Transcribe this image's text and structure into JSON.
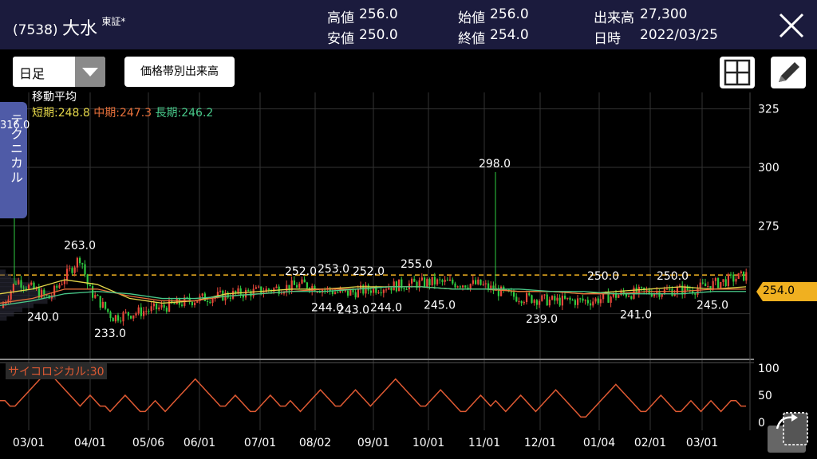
{
  "header": {
    "code": "(7538)",
    "name": "大水",
    "market": "東証*",
    "high_label": "高値",
    "high_value": "256.0",
    "low_label": "安値",
    "low_value": "250.0",
    "open_label": "始値",
    "open_value": "256.0",
    "close_label": "終値",
    "close_value": "254.0",
    "volume_label": "出来高",
    "volume_value": "27,300",
    "date_label": "日時",
    "date_value": "2022/03/25"
  },
  "toolbar": {
    "period_selected": "日足",
    "volume_button": "価格帯別出来高",
    "layout_icon": "grid-icon",
    "draw_icon": "pencil-icon",
    "close_icon": "close-icon"
  },
  "side_tab": {
    "label": "テクニカル",
    "value": "316.0"
  },
  "ma": {
    "title": "移動平均",
    "short_label": "短期:248.8",
    "mid_label": "中期:247.3",
    "long_label": "長期:246.2",
    "colors": {
      "short": "#e6d84a",
      "mid": "#e8703a",
      "long": "#48c98a"
    }
  },
  "psychological": {
    "label": "サイコロジカル:30",
    "color": "#e05a33"
  },
  "current_price_label": "254.0",
  "chart_data": [
    {
      "type": "candlestick",
      "title": "",
      "x_ticks": [
        "03/01",
        "04/01",
        "05/06",
        "06/01",
        "07/01",
        "08/02",
        "09/01",
        "10/01",
        "11/01",
        "12/01",
        "01/04",
        "02/01",
        "03/01"
      ],
      "y_ticks": [
        325,
        300,
        275
      ],
      "ylim": [
        219,
        332
      ],
      "current_price": 254.0,
      "annotations": [
        {
          "label": "316.0",
          "value": 316,
          "kind": "high"
        },
        {
          "label": "263.0",
          "value": 263,
          "kind": "high"
        },
        {
          "label": "240.0",
          "value": 240,
          "kind": "low"
        },
        {
          "label": "233.0",
          "value": 233,
          "kind": "low"
        },
        {
          "label": "252.0",
          "value": 252,
          "kind": "high"
        },
        {
          "label": "253.0",
          "value": 253,
          "kind": "high"
        },
        {
          "label": "252.0",
          "value": 252,
          "kind": "high"
        },
        {
          "label": "244.0",
          "value": 244,
          "kind": "low"
        },
        {
          "label": "243.0",
          "value": 243,
          "kind": "low"
        },
        {
          "label": "244.0",
          "value": 244,
          "kind": "low"
        },
        {
          "label": "255.0",
          "value": 255,
          "kind": "high"
        },
        {
          "label": "245.0",
          "value": 245,
          "kind": "low"
        },
        {
          "label": "298.0",
          "value": 298,
          "kind": "high"
        },
        {
          "label": "239.0",
          "value": 239,
          "kind": "low"
        },
        {
          "label": "250.0",
          "value": 250,
          "kind": "high"
        },
        {
          "label": "241.0",
          "value": 241,
          "kind": "low"
        },
        {
          "label": "250.0",
          "value": 250,
          "kind": "high"
        },
        {
          "label": "245.0",
          "value": 245,
          "kind": "low"
        }
      ],
      "ma_short": [
        246,
        248,
        252,
        250,
        244,
        242,
        243,
        246,
        247,
        248,
        248,
        249,
        249,
        249,
        248,
        248,
        247,
        247,
        246,
        247,
        248,
        249,
        248,
        249
      ],
      "ma_mid": [
        242,
        244,
        248,
        248,
        245,
        243,
        243,
        245,
        246,
        247,
        248,
        248,
        249,
        249,
        248,
        248,
        247,
        247,
        246,
        246,
        247,
        247,
        248,
        248
      ],
      "ma_long": [
        241,
        243,
        246,
        247,
        246,
        244,
        244,
        245,
        246,
        247,
        247,
        248,
        249,
        249,
        248,
        248,
        248,
        247,
        247,
        246,
        246,
        246,
        247,
        247
      ]
    },
    {
      "type": "line",
      "title": "",
      "y_ticks": [
        100,
        50,
        0
      ],
      "ylim": [
        0,
        100
      ],
      "values": [
        40,
        40,
        30,
        30,
        40,
        50,
        60,
        70,
        80,
        90,
        90,
        80,
        70,
        60,
        50,
        40,
        30,
        40,
        50,
        40,
        30,
        30,
        20,
        30,
        40,
        50,
        40,
        30,
        20,
        20,
        30,
        40,
        30,
        20,
        30,
        40,
        50,
        60,
        70,
        80,
        70,
        60,
        50,
        40,
        30,
        30,
        40,
        50,
        40,
        30,
        20,
        20,
        30,
        40,
        50,
        40,
        30,
        30,
        40,
        30,
        20,
        30,
        40,
        50,
        60,
        50,
        40,
        30,
        30,
        40,
        50,
        60,
        50,
        40,
        30,
        40,
        50,
        60,
        70,
        80,
        70,
        60,
        50,
        40,
        30,
        30,
        40,
        50,
        60,
        50,
        40,
        30,
        20,
        20,
        30,
        40,
        50,
        40,
        30,
        40,
        30,
        20,
        30,
        40,
        50,
        40,
        30,
        20,
        30,
        40,
        50,
        60,
        50,
        40,
        30,
        20,
        10,
        10,
        20,
        30,
        40,
        50,
        60,
        70,
        60,
        50,
        40,
        30,
        20,
        20,
        30,
        40,
        50,
        40,
        30,
        20,
        20,
        30,
        40,
        30,
        20,
        30,
        40,
        30,
        20,
        30,
        40,
        40,
        30,
        30
      ]
    }
  ]
}
